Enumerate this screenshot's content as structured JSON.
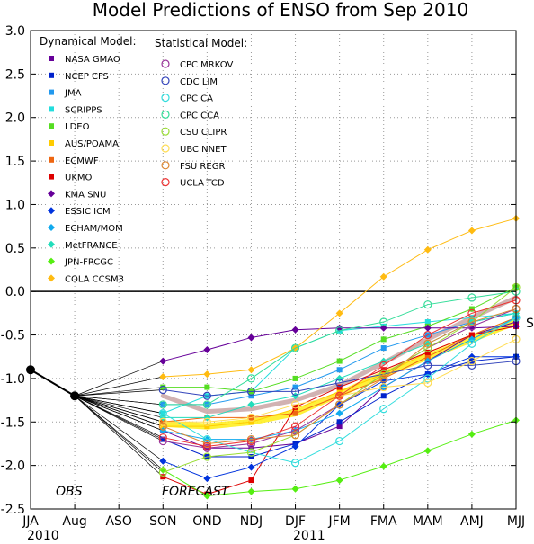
{
  "chart_data": {
    "type": "line",
    "title": "Model Predictions of ENSO from Sep 2010",
    "categories": [
      "JJA",
      "Aug",
      "ASO",
      "SON",
      "OND",
      "NDJ",
      "DJF",
      "JFM",
      "FMA",
      "MAM",
      "AMJ",
      "MJJ"
    ],
    "year_labels": [
      "2010",
      "2011"
    ],
    "ylim": [
      -2.5,
      3.0
    ],
    "ytick_labels": [
      "3.0",
      "2.5",
      "2.0",
      "1.5",
      "1.0",
      "0.5",
      "0.0",
      "-0.5",
      "-1.0",
      "-1.5",
      "-2.0",
      "-2.5"
    ],
    "grid": true,
    "phase_labels": {
      "obs": "OBS",
      "forecast": "FORECAST"
    },
    "observed": {
      "x": [
        "JJA",
        "Aug"
      ],
      "values": [
        -0.9,
        -1.2
      ]
    },
    "forecast_start": "Aug",
    "forecast_start_value": -1.2,
    "forecast_x": [
      "SON",
      "OND",
      "NDJ",
      "DJF",
      "JFM",
      "FMA",
      "MAM",
      "AMJ",
      "MJJ"
    ],
    "legend_titles": {
      "dynamical": "Dynamical Model:",
      "statistical": "Statistical Model:"
    },
    "dynamical_models": [
      {
        "name": "NASA GMAO",
        "color": "#660099",
        "marker": "square",
        "values": [
          -1.6,
          -1.8,
          -1.8,
          -1.75,
          -1.55,
          -1.1,
          -0.8,
          -0.5,
          -0.35
        ]
      },
      {
        "name": "NCEP CFS",
        "color": "#0022cc",
        "marker": "square",
        "values": [
          -1.7,
          -1.9,
          -1.9,
          -1.75,
          -1.5,
          -1.2,
          -0.95,
          -0.8,
          -0.75
        ]
      },
      {
        "name": "JMA",
        "color": "#2299ee",
        "marker": "square",
        "values": [
          -1.3,
          -1.3,
          -1.2,
          -1.1,
          -0.9,
          -0.65,
          -0.5,
          -0.35,
          -0.25
        ]
      },
      {
        "name": "SCRIPPS",
        "color": "#22dddd",
        "marker": "square",
        "values": [
          -1.4,
          -1.2,
          -1.15,
          -0.65,
          -0.45,
          -0.4,
          -0.35,
          -0.3,
          -0.25
        ]
      },
      {
        "name": "LDEO",
        "color": "#55dd22",
        "marker": "square",
        "values": [
          -1.1,
          -1.1,
          -1.15,
          -1.0,
          -0.8,
          -0.55,
          -0.4,
          -0.2,
          0.05
        ]
      },
      {
        "name": "AUS/POAMA",
        "color": "#ffcc00",
        "marker": "square",
        "values": [
          -1.55,
          -1.55,
          -1.5,
          -1.35,
          -1.15,
          -0.95,
          -0.7,
          -0.5,
          -0.3
        ]
      },
      {
        "name": "ECMWF",
        "color": "#ee6611",
        "marker": "square",
        "values": [
          -1.5,
          -1.45,
          -1.45,
          -1.4,
          -1.2,
          -1.0,
          -0.75,
          -0.5,
          -0.3
        ]
      },
      {
        "name": "UKMO",
        "color": "#dd0000",
        "marker": "square",
        "values": [
          -2.13,
          -2.33,
          -2.17,
          -1.33,
          -1.1,
          -0.9,
          -0.7,
          -0.5,
          -0.4
        ]
      },
      {
        "name": "KMA SNU",
        "color": "#660099",
        "marker": "diamond",
        "values": [
          -0.8,
          -0.67,
          -0.53,
          -0.44,
          -0.42,
          -0.42,
          -0.42,
          -0.42,
          -0.4
        ]
      },
      {
        "name": "ESSIC ICM",
        "color": "#0033dd",
        "marker": "diamond",
        "values": [
          -1.95,
          -2.15,
          -2.02,
          -1.78,
          -1.3,
          -1.03,
          -0.95,
          -0.75,
          -0.75
        ]
      },
      {
        "name": "ECHAM/MOM",
        "color": "#11aaee",
        "marker": "diamond",
        "values": [
          -1.6,
          -1.7,
          -1.7,
          -1.6,
          -1.4,
          -1.1,
          -0.8,
          -0.55,
          -0.3
        ]
      },
      {
        "name": "MetFRANCE",
        "color": "#22ddbb",
        "marker": "diamond",
        "values": [
          -1.45,
          -1.45,
          -1.3,
          -1.2,
          -1.0,
          -0.8,
          -0.6,
          -0.35,
          -0.25
        ]
      },
      {
        "name": "JPN-FRCGC",
        "color": "#55ee11",
        "marker": "diamond",
        "values": [
          -2.05,
          -2.35,
          -2.3,
          -2.27,
          -2.17,
          -2.01,
          -1.83,
          -1.64,
          -1.48
        ]
      },
      {
        "name": "COLA CCSM3",
        "color": "#ffbb11",
        "marker": "diamond",
        "values": [
          -0.98,
          -0.95,
          -0.9,
          -0.65,
          -0.25,
          0.17,
          0.48,
          0.7,
          0.84
        ]
      }
    ],
    "statistical_models": [
      {
        "name": "CPC MRKOV",
        "color": "#993399",
        "marker": "circle",
        "values": [
          -1.72,
          -1.8,
          -1.75,
          -1.6,
          -1.3,
          -0.95,
          -0.65,
          -0.4,
          -0.2
        ]
      },
      {
        "name": "CDC LIM",
        "color": "#3344bb",
        "marker": "circle",
        "values": [
          -1.13,
          -1.2,
          -1.15,
          -1.15,
          -1.05,
          -0.95,
          -0.85,
          -0.85,
          -0.8
        ]
      },
      {
        "name": "CPC CA",
        "color": "#33dddd",
        "marker": "circle",
        "values": [
          -1.4,
          -1.7,
          -1.85,
          -1.97,
          -1.72,
          -1.35,
          -1.0,
          -0.6,
          -0.3
        ]
      },
      {
        "name": "CPC CCA",
        "color": "#33dd99",
        "marker": "circle",
        "values": [
          -1.3,
          -1.3,
          -1.0,
          -0.65,
          -0.45,
          -0.35,
          -0.15,
          -0.07,
          0.0
        ]
      },
      {
        "name": "CSU CLIPR",
        "color": "#99dd33",
        "marker": "circle",
        "values": [
          -2.08,
          -1.9,
          -1.85,
          -1.65,
          -1.3,
          -0.95,
          -0.65,
          -0.35,
          0.05
        ]
      },
      {
        "name": "UBC NNET",
        "color": "#ffdd55",
        "marker": "circle",
        "values": [
          -1.5,
          -1.5,
          -1.45,
          -1.3,
          -1.2,
          -1.1,
          -1.05,
          -0.8,
          -0.55
        ]
      },
      {
        "name": "FSU REGR",
        "color": "#dd8833",
        "marker": "circle",
        "values": [
          -1.55,
          -1.75,
          -1.7,
          -1.65,
          -1.3,
          -1.0,
          -0.6,
          -0.35,
          -0.2
        ]
      },
      {
        "name": "UCLA-TCD",
        "color": "#ee3333",
        "marker": "circle",
        "values": [
          -1.68,
          -1.78,
          -1.72,
          -1.55,
          -1.2,
          -0.85,
          -0.5,
          -0.25,
          -0.1
        ]
      }
    ],
    "consensus": {
      "dynamical_average": {
        "color": "#ffee22",
        "values": [
          -1.52,
          -1.55,
          -1.5,
          -1.4,
          -1.18,
          -0.95,
          -0.75,
          -0.55,
          -0.35
        ]
      },
      "statistical_average": {
        "color": "#ccaaaa",
        "values": [
          -1.2,
          -1.38,
          -1.35,
          -1.25,
          -1.08,
          -0.82,
          -0.55,
          -0.3,
          -0.07
        ]
      }
    },
    "right_edge_glyph": "S"
  }
}
